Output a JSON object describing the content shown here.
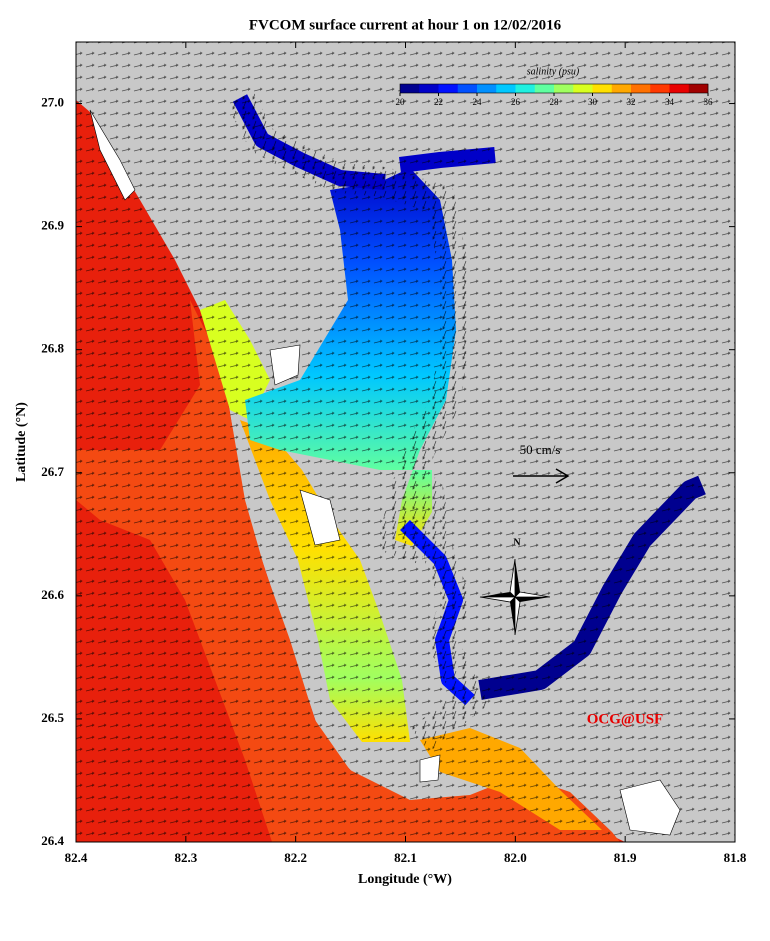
{
  "chart_data": {
    "type": "map",
    "title": "FVCOM surface current at hour 1 on 12/02/2016",
    "x_label": "Longitude (°W)",
    "y_label": "Latitude (°N)",
    "xlim": [
      82.4,
      81.8
    ],
    "xticks": [
      82.4,
      82.3,
      82.2,
      82.1,
      {
        "value": 82,
        "label": "82.0"
      },
      81.9,
      81.8
    ],
    "ylim": [
      26.4,
      27.05
    ],
    "yticks": [
      26.4,
      26.5,
      26.6,
      26.7,
      26.8,
      26.9,
      {
        "value": 27,
        "label": "27.0"
      }
    ],
    "colorbar": {
      "label": "salinity (psu)",
      "range": [
        20,
        36
      ],
      "ticks": [
        20,
        22,
        24,
        26,
        28,
        30,
        32,
        34,
        36
      ],
      "colors": [
        "#00008f",
        "#0000c8",
        "#0010ff",
        "#0050ff",
        "#0090ff",
        "#00c8ff",
        "#20f0e0",
        "#60ffa0",
        "#a0ff60",
        "#d8ff20",
        "#ffe000",
        "#ffa800",
        "#ff7000",
        "#ff3800",
        "#e80000",
        "#a00000"
      ]
    },
    "scale_label": "50 cm/s",
    "north_label": "N",
    "credit": "OCG@USF"
  }
}
